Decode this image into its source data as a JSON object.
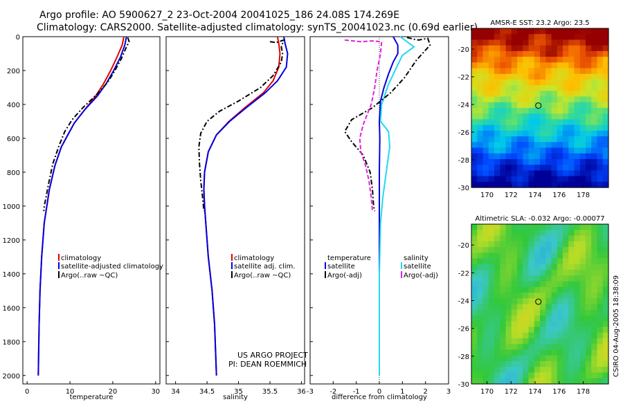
{
  "figure": {
    "title_line1": "Argo profile: AO 5900627_2 23-Oct-2004 20041025_186 24.08S 174.269E",
    "title_line2": "Climatology: CARS2000. Satellite-adjusted climatology: synTS_20041023.nc (0.69d earlier)",
    "credit_line1": "US ARGO PROJECT",
    "credit_line2": "PI: DEAN ROEMMICH",
    "timestamp": "CSIRO 04-Aug-2005 18:38:09"
  },
  "colors": {
    "climatology_red": "#e00000",
    "satellite_blue": "#0000e0",
    "argo_black": "#000000",
    "salinity_cyan": "#20d8f0",
    "argo_adj_magenta": "#e020e0"
  },
  "chart_data": [
    {
      "type": "line",
      "xlabel": "temperature",
      "ylabel": "",
      "xlim": [
        -1,
        31
      ],
      "ylim": [
        2050,
        0
      ],
      "x_ticks": [
        0,
        10,
        20,
        30
      ],
      "y_ticks": [
        0,
        200,
        400,
        600,
        800,
        1000,
        1200,
        1400,
        1600,
        1800,
        2000
      ],
      "legend": {
        "position": "lower-right",
        "entries": [
          "climatology",
          "satellite-adjusted climatology",
          "Argo(..raw ~QC)"
        ]
      },
      "series": [
        {
          "name": "climatology",
          "color": "#e00000",
          "style": "solid",
          "points": [
            [
              22.6,
              0
            ],
            [
              22.2,
              50
            ],
            [
              21.0,
              120
            ],
            [
              19.5,
              200
            ],
            [
              17.8,
              280
            ],
            [
              16.0,
              350
            ],
            [
              13.5,
              430
            ],
            [
              11.0,
              510
            ],
            [
              9.5,
              580
            ],
            [
              8.0,
              650
            ],
            [
              6.5,
              760
            ],
            [
              5.2,
              900
            ],
            [
              4.0,
              1100
            ],
            [
              3.4,
              1300
            ],
            [
              3.0,
              1500
            ],
            [
              2.8,
              1700
            ],
            [
              2.6,
              2000
            ]
          ]
        },
        {
          "name": "satellite-adjusted climatology",
          "color": "#0000e0",
          "style": "solid",
          "points": [
            [
              23.2,
              0
            ],
            [
              22.8,
              50
            ],
            [
              21.8,
              120
            ],
            [
              20.2,
              200
            ],
            [
              18.4,
              280
            ],
            [
              16.4,
              350
            ],
            [
              13.5,
              430
            ],
            [
              11.0,
              510
            ],
            [
              9.5,
              580
            ],
            [
              8.0,
              650
            ],
            [
              6.5,
              760
            ],
            [
              5.2,
              900
            ],
            [
              4.0,
              1100
            ],
            [
              3.4,
              1300
            ],
            [
              3.0,
              1500
            ],
            [
              2.8,
              1700
            ],
            [
              2.6,
              2000
            ]
          ]
        },
        {
          "name": "Argo(..raw ~QC)",
          "color": "#000000",
          "style": "dashdot",
          "points": [
            [
              23.5,
              5
            ],
            [
              23.8,
              30
            ],
            [
              23.2,
              60
            ],
            [
              22.0,
              130
            ],
            [
              20.5,
              200
            ],
            [
              18.8,
              270
            ],
            [
              16.3,
              340
            ],
            [
              13.0,
              420
            ],
            [
              10.5,
              490
            ],
            [
              8.8,
              560
            ],
            [
              7.5,
              640
            ],
            [
              6.0,
              750
            ],
            [
              5.0,
              870
            ],
            [
              4.4,
              950
            ],
            [
              4.0,
              1000
            ],
            [
              3.9,
              1030
            ]
          ]
        }
      ]
    },
    {
      "type": "line",
      "xlabel": "salinity",
      "ylabel": "",
      "xlim": [
        33.85,
        36.05
      ],
      "ylim": [
        2050,
        0
      ],
      "x_ticks": [
        34,
        34.5,
        35,
        35.5,
        36
      ],
      "y_ticks": [
        0,
        200,
        400,
        600,
        800,
        1000,
        1200,
        1400,
        1600,
        1800,
        2000
      ],
      "legend": {
        "position": "lower-right",
        "entries": [
          "climatology",
          "satellite adj. clim.",
          "Argo(..raw ~QC)"
        ]
      },
      "series": [
        {
          "name": "climatology",
          "color": "#e00000",
          "style": "solid",
          "points": [
            [
              35.62,
              0
            ],
            [
              35.64,
              40
            ],
            [
              35.66,
              100
            ],
            [
              35.64,
              180
            ],
            [
              35.55,
              260
            ],
            [
              35.4,
              330
            ],
            [
              35.1,
              420
            ],
            [
              34.85,
              500
            ],
            [
              34.65,
              580
            ],
            [
              34.52,
              680
            ],
            [
              34.46,
              800
            ],
            [
              34.45,
              900
            ],
            [
              34.46,
              1000
            ],
            [
              34.48,
              1100
            ],
            [
              34.52,
              1300
            ],
            [
              34.58,
              1500
            ],
            [
              34.62,
              1700
            ],
            [
              34.65,
              2000
            ]
          ]
        },
        {
          "name": "satellite adj. clim.",
          "color": "#0000e0",
          "style": "solid",
          "points": [
            [
              35.72,
              0
            ],
            [
              35.74,
              40
            ],
            [
              35.78,
              100
            ],
            [
              35.76,
              180
            ],
            [
              35.62,
              260
            ],
            [
              35.43,
              330
            ],
            [
              35.12,
              420
            ],
            [
              34.86,
              500
            ],
            [
              34.65,
              580
            ],
            [
              34.52,
              680
            ],
            [
              34.46,
              800
            ],
            [
              34.45,
              900
            ],
            [
              34.46,
              1000
            ],
            [
              34.48,
              1100
            ],
            [
              34.52,
              1300
            ],
            [
              34.58,
              1500
            ],
            [
              34.62,
              1700
            ],
            [
              34.65,
              2000
            ]
          ]
        },
        {
          "name": "Argo(..raw ~QC)",
          "color": "#000000",
          "style": "dashdot",
          "points": [
            [
              35.5,
              30
            ],
            [
              35.6,
              35
            ],
            [
              35.72,
              20
            ],
            [
              35.68,
              60
            ],
            [
              35.7,
              100
            ],
            [
              35.68,
              150
            ],
            [
              35.55,
              230
            ],
            [
              35.35,
              300
            ],
            [
              35.0,
              380
            ],
            [
              34.7,
              440
            ],
            [
              34.5,
              500
            ],
            [
              34.4,
              570
            ],
            [
              34.37,
              650
            ],
            [
              34.38,
              750
            ],
            [
              34.4,
              850
            ],
            [
              34.43,
              950
            ],
            [
              34.45,
              1030
            ]
          ]
        }
      ]
    },
    {
      "type": "line",
      "xlabel": "difference from climatology",
      "ylabel": "",
      "xlim": [
        -3,
        3
      ],
      "ylim": [
        2050,
        0
      ],
      "x_ticks": [
        -3,
        -2,
        -1,
        0,
        1,
        2,
        3
      ],
      "y_ticks": [
        0,
        200,
        400,
        600,
        800,
        1000,
        1200,
        1400,
        1600,
        1800,
        2000
      ],
      "legend": {
        "position": "lower-center",
        "entries": [
          "temperature",
          "satellite",
          "Argo(-adj)",
          "salinity",
          "satellite",
          "Argo(-adj)"
        ]
      },
      "series": [
        {
          "name": "temperature satellite",
          "color": "#0000e0",
          "style": "solid",
          "points": [
            [
              0.6,
              0
            ],
            [
              0.8,
              50
            ],
            [
              0.8,
              100
            ],
            [
              0.6,
              150
            ],
            [
              0.4,
              220
            ],
            [
              0.2,
              300
            ],
            [
              0.05,
              380
            ],
            [
              0.0,
              500
            ],
            [
              0.02,
              600
            ],
            [
              0,
              800
            ],
            [
              0,
              1000
            ],
            [
              0,
              1500
            ],
            [
              0,
              2000
            ]
          ]
        },
        {
          "name": "salinity satellite",
          "color": "#20d8f0",
          "style": "solid",
          "points": [
            [
              0.9,
              0
            ],
            [
              1.2,
              30
            ],
            [
              1.5,
              60
            ],
            [
              1.0,
              110
            ],
            [
              0.75,
              180
            ],
            [
              0.4,
              280
            ],
            [
              0.1,
              400
            ],
            [
              0.05,
              500
            ],
            [
              0.4,
              560
            ],
            [
              0.45,
              650
            ],
            [
              0.3,
              800
            ],
            [
              0.15,
              950
            ],
            [
              0.05,
              1100
            ],
            [
              0,
              1400
            ],
            [
              0,
              2000
            ]
          ]
        },
        {
          "name": "temperature Argo(-adj)",
          "color": "#000000",
          "style": "dashdot",
          "points": [
            [
              1.2,
              5
            ],
            [
              1.5,
              15
            ],
            [
              1.7,
              20
            ],
            [
              2.1,
              10
            ],
            [
              2.2,
              50
            ],
            [
              1.6,
              140
            ],
            [
              1.1,
              240
            ],
            [
              0.5,
              330
            ],
            [
              -0.3,
              420
            ],
            [
              -1.2,
              490
            ],
            [
              -1.5,
              560
            ],
            [
              -1.2,
              620
            ],
            [
              -0.7,
              700
            ],
            [
              -0.4,
              800
            ],
            [
              -0.3,
              900
            ],
            [
              -0.25,
              1000
            ],
            [
              -0.2,
              1030
            ]
          ]
        },
        {
          "name": "salinity Argo(-adj)",
          "color": "#e020e0",
          "style": "dashed",
          "points": [
            [
              -1.5,
              20
            ],
            [
              -0.8,
              30
            ],
            [
              -0.3,
              25
            ],
            [
              0.1,
              30
            ],
            [
              0.05,
              100
            ],
            [
              -0.1,
              200
            ],
            [
              -0.2,
              300
            ],
            [
              -0.35,
              400
            ],
            [
              -0.5,
              450
            ],
            [
              -0.7,
              520
            ],
            [
              -0.85,
              600
            ],
            [
              -0.8,
              680
            ],
            [
              -0.6,
              760
            ],
            [
              -0.45,
              850
            ],
            [
              -0.35,
              950
            ],
            [
              -0.3,
              1030
            ]
          ]
        }
      ]
    },
    {
      "type": "heatmap",
      "title": "AMSR-E SST: 23.2 Argo: 23.5",
      "xlim": [
        168.7,
        180.1
      ],
      "ylim": [
        -30,
        -18.5
      ],
      "x_ticks": [
        170,
        172,
        174,
        176,
        178
      ],
      "y_ticks": [
        -20,
        -22,
        -24,
        -26,
        -28,
        -30
      ],
      "marker": {
        "lon": 174.269,
        "lat": -24.08
      }
    },
    {
      "type": "heatmap",
      "title": "Altimetric SLA: -0.032 Argo: -0.00077",
      "xlim": [
        168.7,
        180.1
      ],
      "ylim": [
        -30,
        -18.5
      ],
      "x_ticks": [
        170,
        172,
        174,
        176,
        178
      ],
      "y_ticks": [
        -20,
        -22,
        -24,
        -26,
        -28,
        -30
      ],
      "marker": {
        "lon": 174.269,
        "lat": -24.08
      }
    }
  ]
}
